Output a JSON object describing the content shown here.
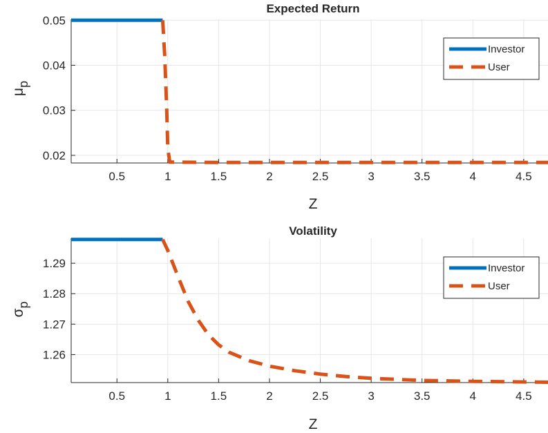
{
  "chart_data": [
    {
      "type": "line",
      "title": "Expected Return",
      "xlabel": "Z",
      "ylabel_base": "μ",
      "ylabel_sub": "p",
      "xlim": [
        0.05,
        4.8
      ],
      "ylim": [
        0.0183,
        0.0502
      ],
      "xticks": [
        0.5,
        1,
        1.5,
        2,
        2.5,
        3,
        3.5,
        4,
        4.5
      ],
      "xtick_labels": [
        "0.5",
        "1",
        "1.5",
        "2",
        "2.5",
        "3",
        "3.5",
        "4",
        "4.5"
      ],
      "yticks": [
        0.02,
        0.03,
        0.04,
        0.05
      ],
      "ytick_labels": [
        "0.02",
        "0.03",
        "0.04",
        "0.05"
      ],
      "grid": true,
      "legend_position": "top-right",
      "series": [
        {
          "name": "Investor",
          "color": "#0072BD",
          "style": "solid",
          "x": [
            0.05,
            0.95
          ],
          "y": [
            0.05,
            0.05
          ]
        },
        {
          "name": "User",
          "color": "#D95319",
          "style": "dashed",
          "x": [
            0.95,
            0.97,
            0.99,
            1.0,
            1.02,
            1.5,
            2,
            2.5,
            3,
            3.5,
            4,
            4.5,
            4.8
          ],
          "y": [
            0.05,
            0.042,
            0.03,
            0.0215,
            0.0185,
            0.0184,
            0.0184,
            0.0184,
            0.0184,
            0.0184,
            0.0184,
            0.0184,
            0.0184
          ]
        }
      ]
    },
    {
      "type": "line",
      "title": "Volatility",
      "xlabel": "Z",
      "ylabel_base": "σ",
      "ylabel_sub": "p",
      "xlim": [
        0.05,
        4.8
      ],
      "ylim": [
        1.2508,
        1.2982
      ],
      "xticks": [
        0.5,
        1,
        1.5,
        2,
        2.5,
        3,
        3.5,
        4,
        4.5
      ],
      "xtick_labels": [
        "0.5",
        "1",
        "1.5",
        "2",
        "2.5",
        "3",
        "3.5",
        "4",
        "4.5"
      ],
      "yticks": [
        1.26,
        1.27,
        1.28,
        1.29
      ],
      "ytick_labels": [
        "1.26",
        "1.27",
        "1.28",
        "1.29"
      ],
      "grid": true,
      "legend_position": "top-right",
      "series": [
        {
          "name": "Investor",
          "color": "#0072BD",
          "style": "solid",
          "x": [
            0.05,
            0.95
          ],
          "y": [
            1.2978,
            1.2978
          ]
        },
        {
          "name": "User",
          "color": "#D95319",
          "style": "dashed",
          "x": [
            0.95,
            1.0,
            1.1,
            1.2,
            1.3,
            1.4,
            1.5,
            1.6,
            1.8,
            2.0,
            2.25,
            2.5,
            2.75,
            3.0,
            3.5,
            4.0,
            4.5,
            4.8
          ],
          "y": [
            1.2978,
            1.2942,
            1.2857,
            1.2775,
            1.2713,
            1.2665,
            1.2632,
            1.2608,
            1.258,
            1.2562,
            1.2547,
            1.2536,
            1.2528,
            1.2522,
            1.2515,
            1.2512,
            1.251,
            1.2509
          ]
        }
      ]
    }
  ]
}
